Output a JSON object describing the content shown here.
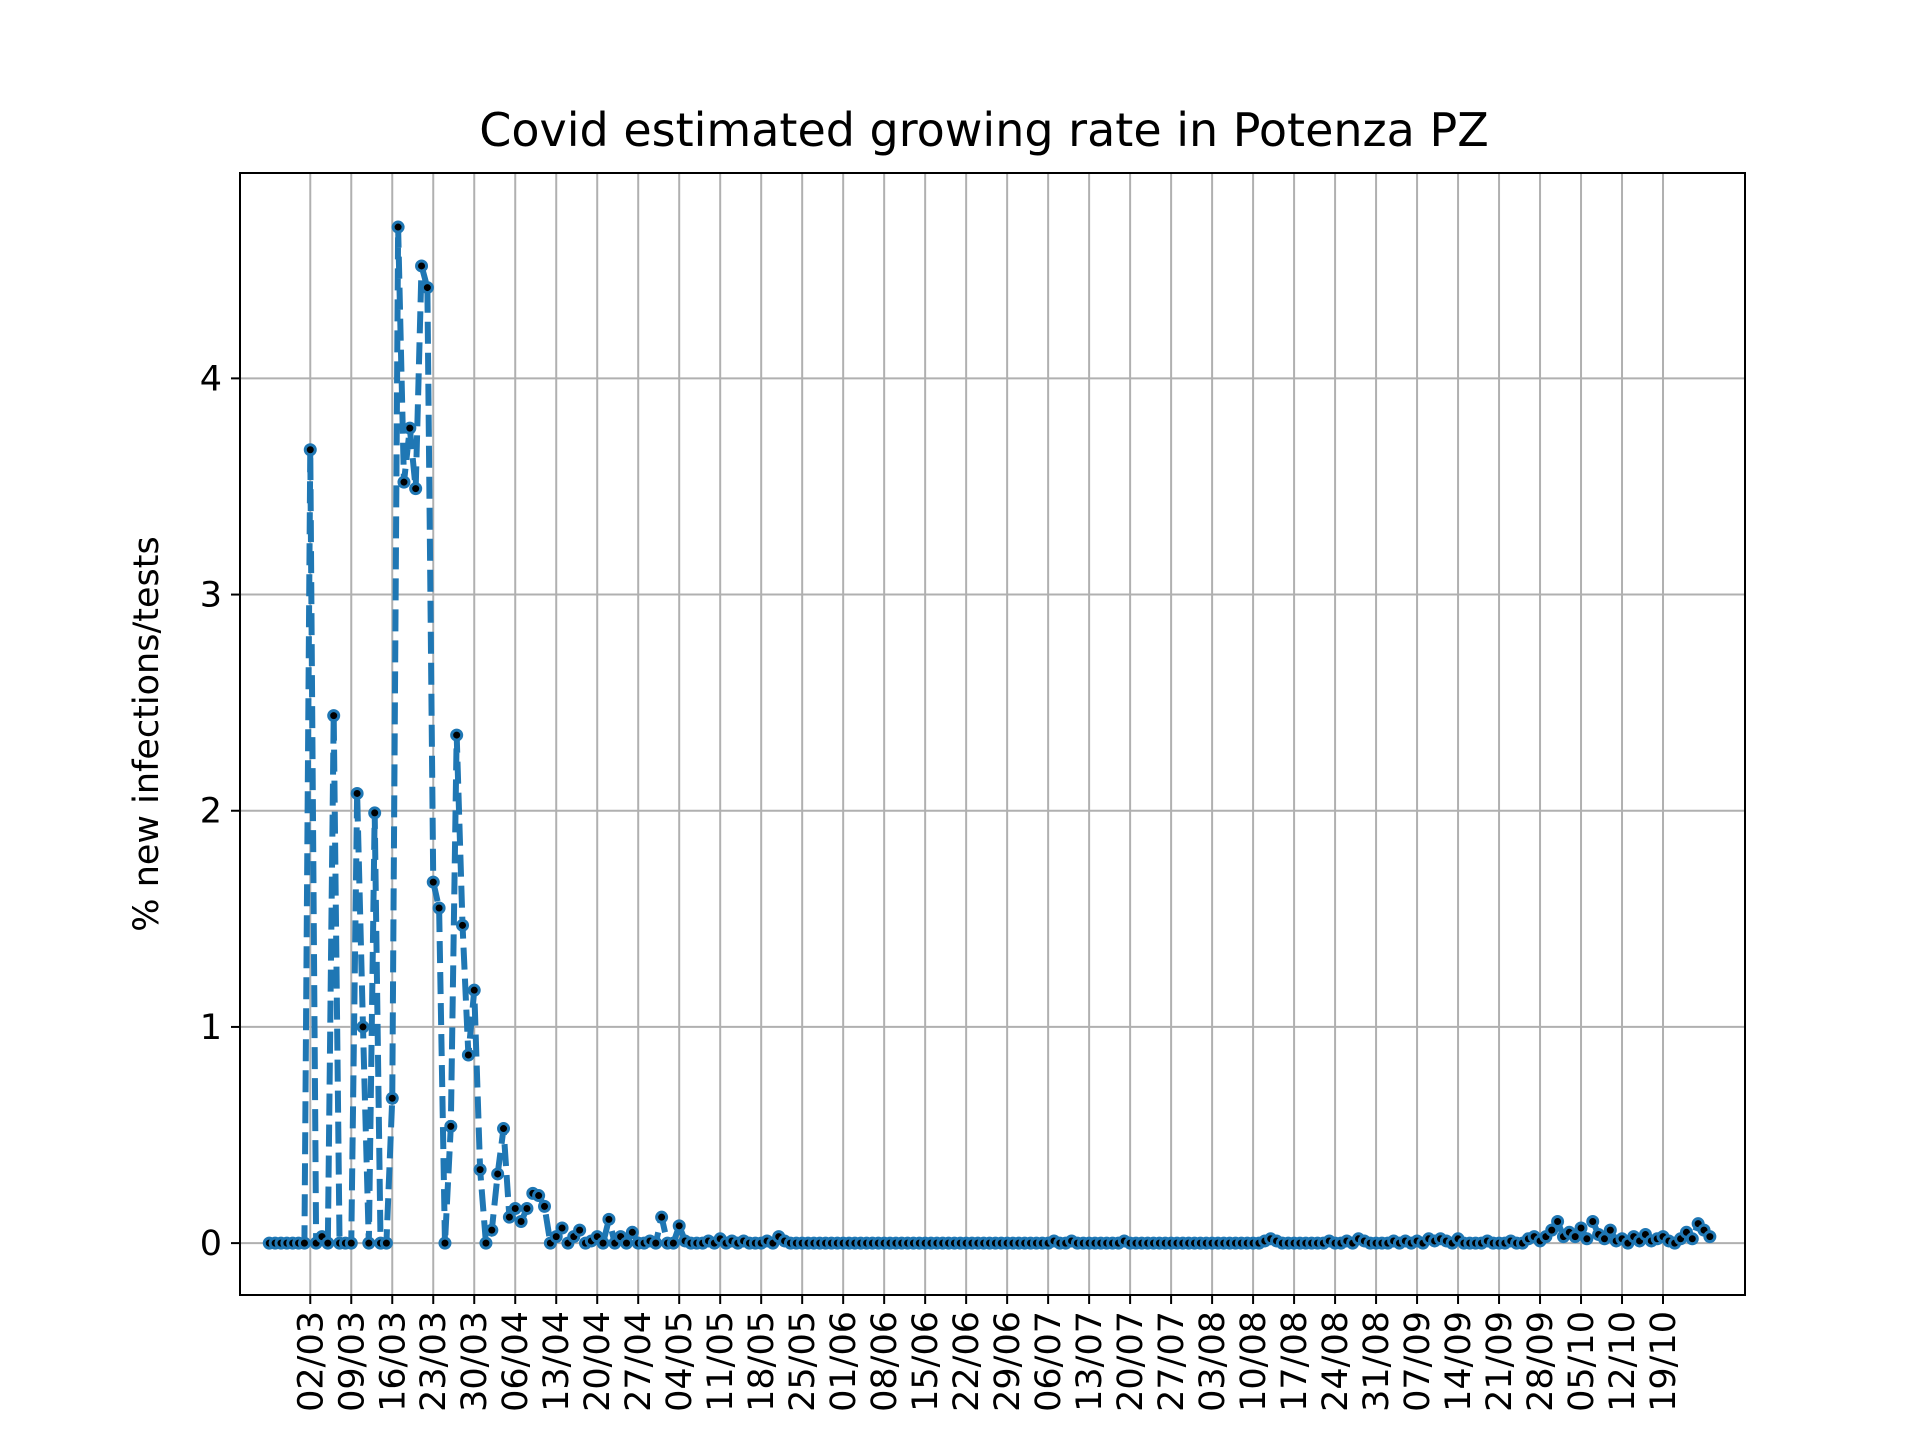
{
  "chart_data": {
    "type": "line",
    "title": "Covid estimated growing rate in Potenza PZ",
    "xlabel": "",
    "ylabel": "% new infections/tests",
    "ylim": [
      -0.24,
      4.95
    ],
    "yticks": [
      0,
      1,
      2,
      3,
      4
    ],
    "grid": true,
    "series_color": "#1f77b4",
    "marker_color": "#000000",
    "line_style": "dashed",
    "start_date": "2020-02-24",
    "xticks": [
      {
        "day": 7,
        "label": "02/03"
      },
      {
        "day": 14,
        "label": "09/03"
      },
      {
        "day": 21,
        "label": "16/03"
      },
      {
        "day": 28,
        "label": "23/03"
      },
      {
        "day": 35,
        "label": "30/03"
      },
      {
        "day": 42,
        "label": "06/04"
      },
      {
        "day": 49,
        "label": "13/04"
      },
      {
        "day": 56,
        "label": "20/04"
      },
      {
        "day": 63,
        "label": "27/04"
      },
      {
        "day": 70,
        "label": "04/05"
      },
      {
        "day": 77,
        "label": "11/05"
      },
      {
        "day": 84,
        "label": "18/05"
      },
      {
        "day": 91,
        "label": "25/05"
      },
      {
        "day": 98,
        "label": "01/06"
      },
      {
        "day": 105,
        "label": "08/06"
      },
      {
        "day": 112,
        "label": "15/06"
      },
      {
        "day": 119,
        "label": "22/06"
      },
      {
        "day": 126,
        "label": "29/06"
      },
      {
        "day": 133,
        "label": "06/07"
      },
      {
        "day": 140,
        "label": "13/07"
      },
      {
        "day": 147,
        "label": "20/07"
      },
      {
        "day": 154,
        "label": "27/07"
      },
      {
        "day": 161,
        "label": "03/08"
      },
      {
        "day": 168,
        "label": "10/08"
      },
      {
        "day": 175,
        "label": "17/08"
      },
      {
        "day": 182,
        "label": "24/08"
      },
      {
        "day": 189,
        "label": "31/08"
      },
      {
        "day": 196,
        "label": "07/09"
      },
      {
        "day": 203,
        "label": "14/09"
      },
      {
        "day": 210,
        "label": "21/09"
      },
      {
        "day": 217,
        "label": "28/09"
      },
      {
        "day": 224,
        "label": "05/10"
      },
      {
        "day": 231,
        "label": "12/10"
      },
      {
        "day": 238,
        "label": "19/10"
      }
    ],
    "series": [
      {
        "values": [
          0,
          0,
          0,
          0,
          0,
          0,
          0,
          3.67,
          0,
          0.03,
          0,
          2.44,
          0,
          0,
          0,
          2.08,
          1.0,
          0,
          1.99,
          0,
          0,
          0.67,
          4.7,
          3.52,
          3.77,
          3.49,
          4.52,
          4.42,
          1.67,
          1.55,
          0,
          0.54,
          2.35,
          1.47,
          0.87,
          1.17,
          0.34,
          0,
          0.06,
          0.32,
          0.53,
          0.12,
          0.16,
          0.1,
          0.16,
          0.23,
          0.22,
          0.17,
          0,
          0.03,
          0.07,
          0,
          0.03,
          0.06,
          0,
          0.01,
          0.03,
          0,
          0.11,
          0,
          0.03,
          0,
          0.05,
          0,
          0,
          0.01,
          0,
          0.12,
          0,
          0,
          0.08,
          0.01,
          0,
          0,
          0,
          0.01,
          0,
          0.02,
          0,
          0.01,
          0,
          0.01,
          0,
          0,
          0,
          0.01,
          0,
          0.03,
          0.01,
          0,
          0,
          0,
          0,
          0,
          0,
          0,
          0,
          0,
          0,
          0,
          0,
          0,
          0,
          0,
          0,
          0,
          0,
          0,
          0,
          0,
          0,
          0,
          0,
          0,
          0,
          0,
          0,
          0,
          0,
          0,
          0,
          0,
          0,
          0,
          0,
          0,
          0,
          0,
          0,
          0,
          0,
          0,
          0,
          0,
          0.01,
          0,
          0,
          0.01,
          0,
          0,
          0,
          0,
          0,
          0,
          0,
          0,
          0.01,
          0,
          0,
          0,
          0,
          0,
          0,
          0,
          0,
          0,
          0,
          0,
          0,
          0,
          0,
          0,
          0,
          0,
          0,
          0,
          0,
          0,
          0,
          0,
          0.01,
          0.02,
          0.01,
          0,
          0,
          0,
          0,
          0,
          0,
          0,
          0,
          0.01,
          0,
          0,
          0.01,
          0,
          0.02,
          0.01,
          0,
          0,
          0,
          0,
          0.01,
          0,
          0.01,
          0,
          0.01,
          0,
          0.02,
          0.01,
          0.02,
          0.01,
          0,
          0.02,
          0,
          0,
          0,
          0,
          0.01,
          0,
          0,
          0,
          0.01,
          0,
          0,
          0.02,
          0.03,
          0.01,
          0.03,
          0.06,
          0.1,
          0.03,
          0.05,
          0.03,
          0.07,
          0.02,
          0.1,
          0.04,
          0.02,
          0.06,
          0.01,
          0.02,
          0,
          0.03,
          0.01,
          0.04,
          0.01,
          0.02,
          0.03,
          0.01,
          0,
          0.02,
          0.05,
          0.02,
          0.09,
          0.06,
          0.03
        ]
      }
    ]
  }
}
